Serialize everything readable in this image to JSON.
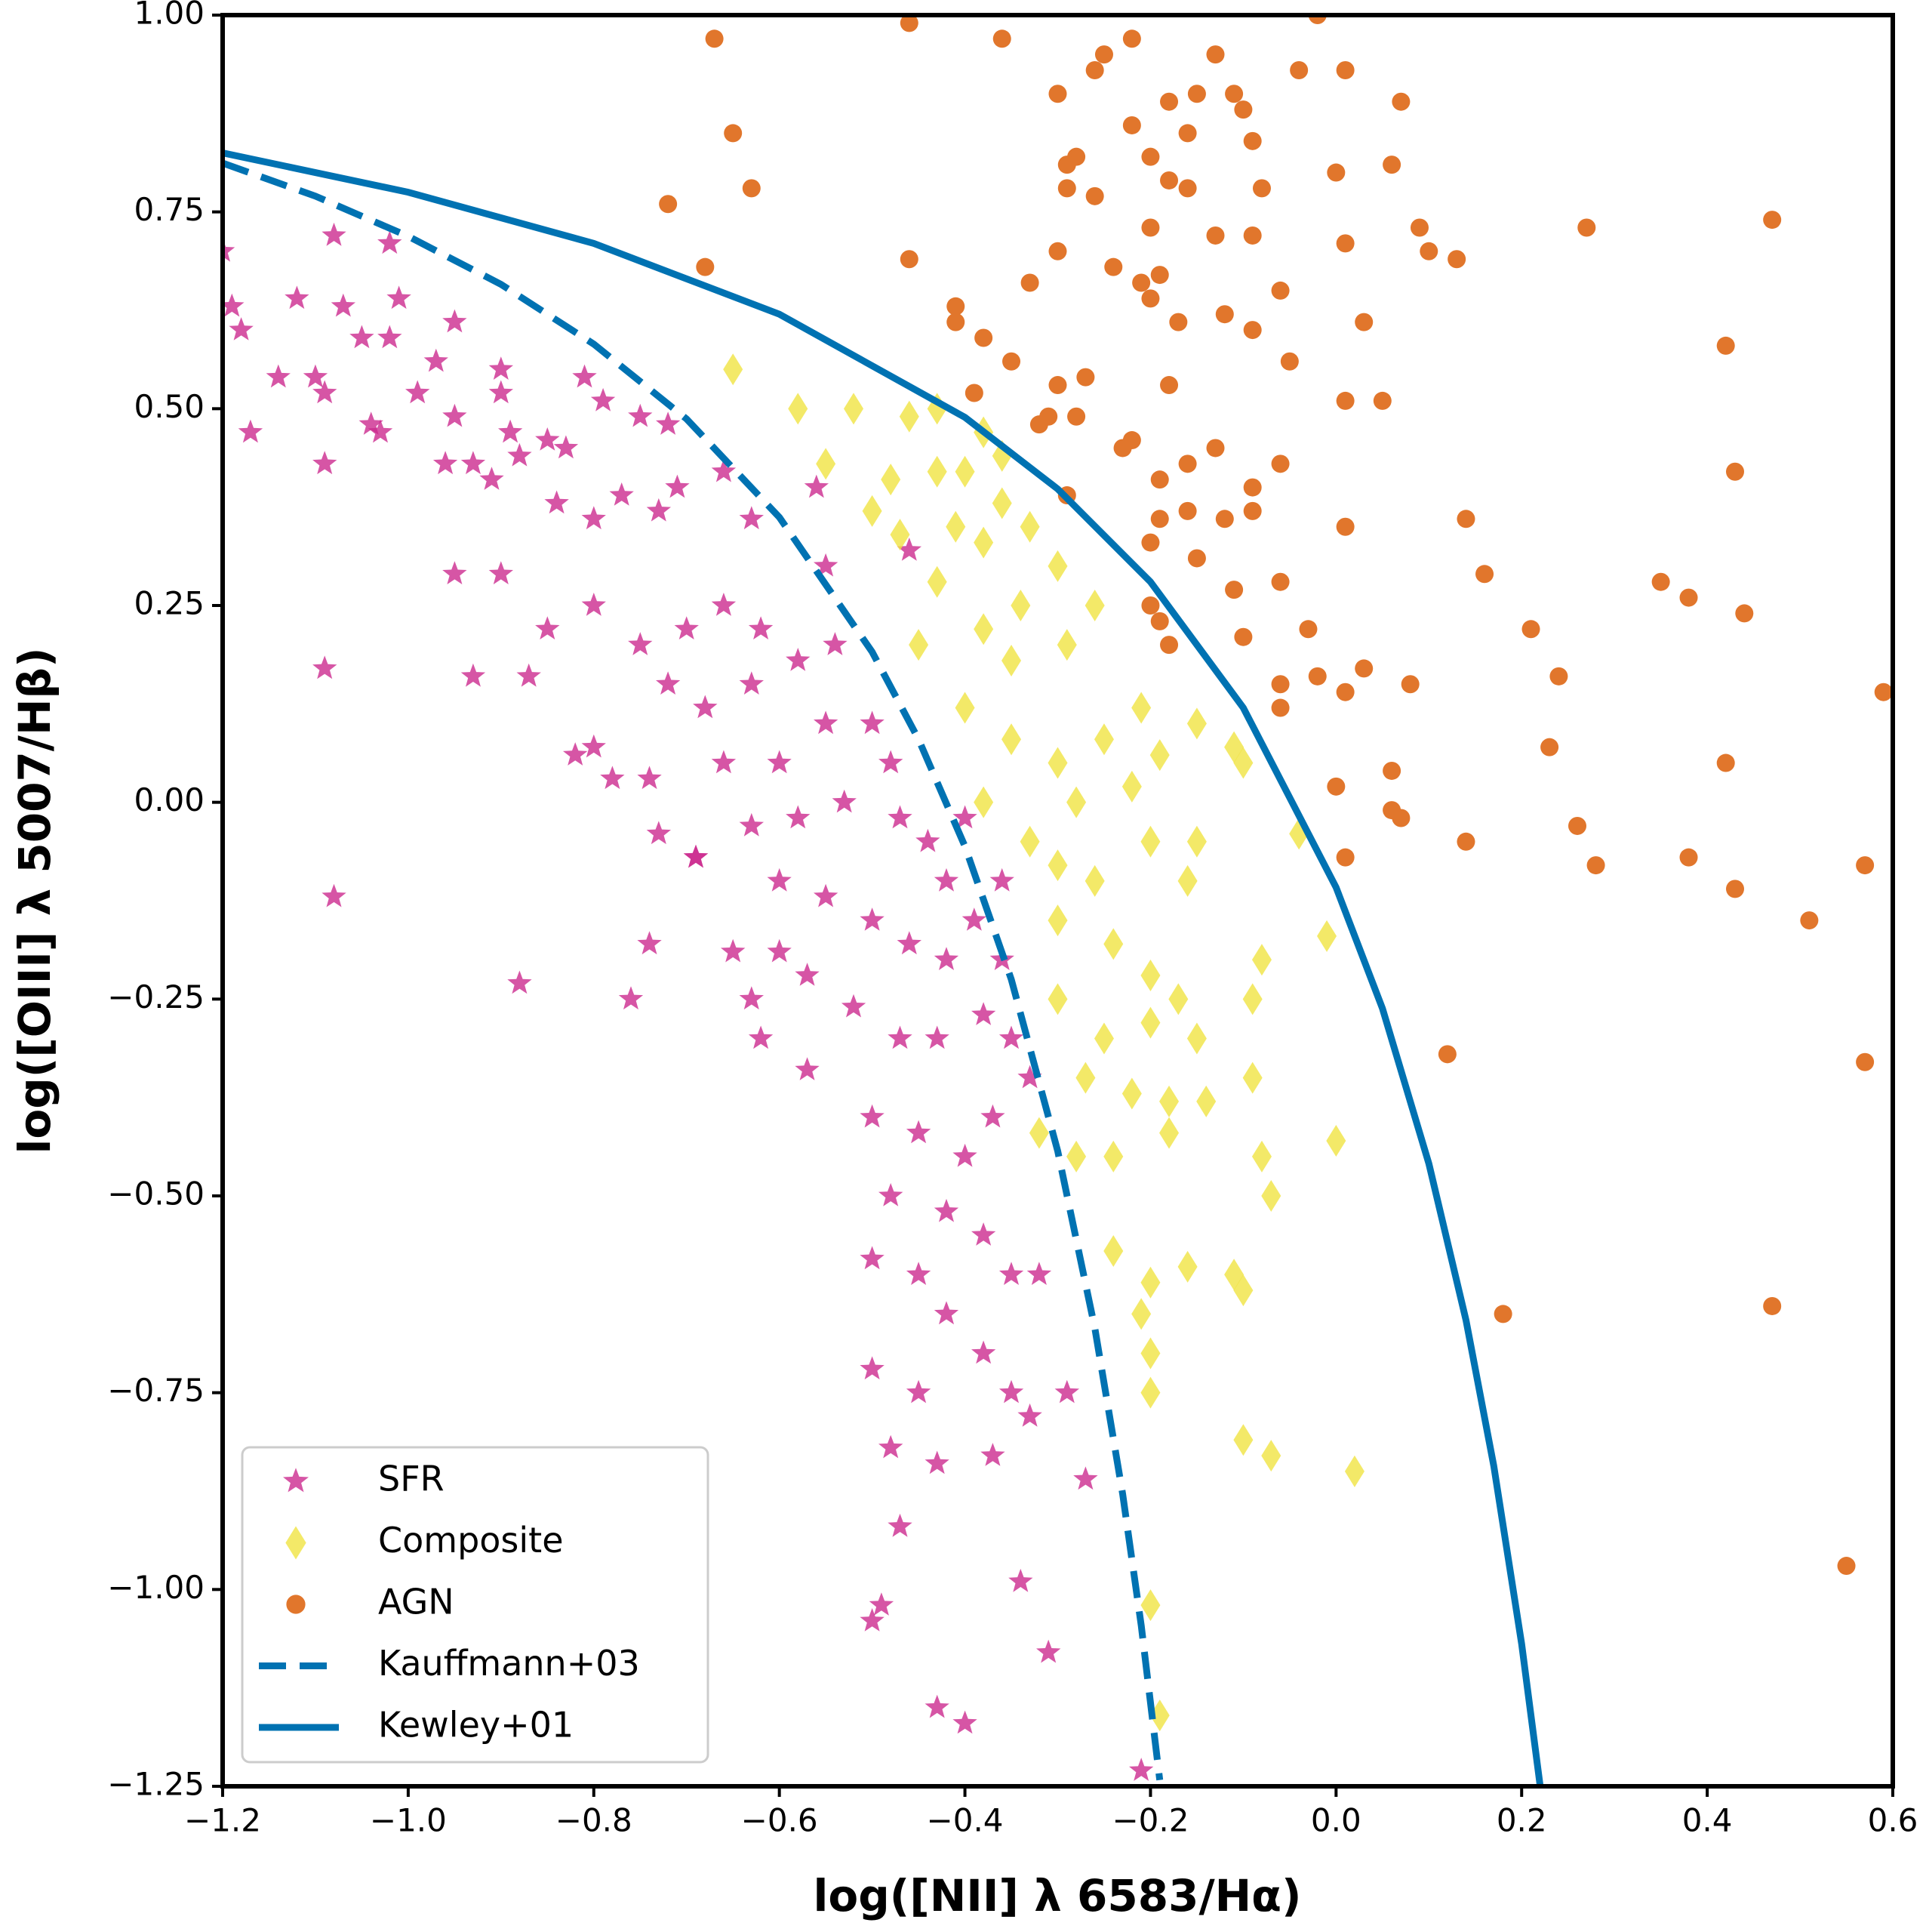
{
  "chart_data": {
    "type": "scatter",
    "xlabel": "log([NII] λ 6583/Hα)",
    "ylabel": "log([OIII] λ 5007/Hβ)",
    "xlim": [
      -1.2,
      0.6
    ],
    "ylim": [
      -1.25,
      1.0
    ],
    "xticks": [
      {
        "value": -1.2,
        "label": "−1.2"
      },
      {
        "value": -1.0,
        "label": "−1.0"
      },
      {
        "value": -0.8,
        "label": "−0.8"
      },
      {
        "value": -0.6,
        "label": "−0.6"
      },
      {
        "value": -0.4,
        "label": "−0.4"
      },
      {
        "value": -0.2,
        "label": "−0.2"
      },
      {
        "value": 0,
        "label": "0.0"
      },
      {
        "value": 0.2,
        "label": "0.2"
      },
      {
        "value": 0.4,
        "label": "0.4"
      },
      {
        "value": 0.6,
        "label": "0.6"
      }
    ],
    "yticks": [
      {
        "value": -1.25,
        "label": "−1.25"
      },
      {
        "value": -1.0,
        "label": "−1.00"
      },
      {
        "value": -0.75,
        "label": "−0.75"
      },
      {
        "value": -0.5,
        "label": "−0.50"
      },
      {
        "value": -0.25,
        "label": "−0.25"
      },
      {
        "value": 0,
        "label": "0.00"
      },
      {
        "value": 0.25,
        "label": "0.25"
      },
      {
        "value": 0.5,
        "label": "0.50"
      },
      {
        "value": 0.75,
        "label": "0.75"
      },
      {
        "value": 1.0,
        "label": "1.00"
      }
    ],
    "legend": "lower left",
    "series": [
      {
        "name": "SFR",
        "type": "scatter",
        "marker": "star",
        "color": "#cc2a8e",
        "x": [
          -1.2,
          -1.19,
          -1.18,
          -1.17,
          -1.12,
          -1.07,
          -1.05,
          -1.02,
          -1.08,
          -1.02,
          -1.01,
          -1.14,
          -1.1,
          -1.09,
          -1.04,
          -1.03,
          -0.99,
          -0.97,
          -0.95,
          -0.95,
          -0.96,
          -1.09,
          -0.93,
          -0.91,
          -0.9,
          -0.9,
          -0.89,
          -0.88,
          -0.85,
          -0.83,
          -0.81,
          -0.79,
          -0.75,
          -0.84,
          -0.8,
          -0.77,
          -0.73,
          -0.71,
          -0.95,
          -0.9,
          -0.8,
          -0.85,
          -0.75,
          -0.7,
          -0.66,
          -0.62,
          -0.72,
          -0.68,
          -0.63,
          -0.58,
          -0.54,
          -0.82,
          -0.78,
          -0.74,
          -0.66,
          -0.6,
          -0.55,
          -0.5,
          -0.48,
          -0.73,
          -0.69,
          -0.63,
          -0.58,
          -0.53,
          -0.47,
          -0.44,
          -0.42,
          -0.6,
          -0.55,
          -0.5,
          -0.46,
          -0.42,
          -0.39,
          -0.65,
          -0.63,
          -0.57,
          -0.52,
          -0.47,
          -0.43,
          -0.38,
          -0.35,
          -0.62,
          -0.57,
          -0.5,
          -0.45,
          -0.4,
          -0.37,
          -0.33,
          -0.48,
          -0.42,
          -0.38,
          -0.35,
          -0.32,
          -0.45,
          -0.5,
          -0.42,
          -0.38,
          -0.35,
          -0.45,
          -0.5,
          -0.48,
          -0.43,
          -0.37,
          -0.33,
          -0.29,
          -0.27,
          -0.47,
          -0.34,
          -0.5,
          -0.49,
          -0.31,
          -0.43,
          -0.4,
          -0.21,
          -1.09,
          -1.08,
          -0.88,
          -0.76,
          -0.74,
          -0.69,
          -0.6,
          -0.93,
          -0.87,
          -0.8,
          -0.46,
          -0.55,
          -0.63,
          -0.56,
          -0.66,
          -0.72,
          -0.4,
          -0.36,
          -0.36
        ],
        "values": [
          0.7,
          0.63,
          0.6,
          0.47,
          0.64,
          0.63,
          0.59,
          0.59,
          0.72,
          0.71,
          0.64,
          0.54,
          0.54,
          0.52,
          0.48,
          0.47,
          0.52,
          0.56,
          0.61,
          0.49,
          0.43,
          0.43,
          0.43,
          0.41,
          0.52,
          0.55,
          0.47,
          0.44,
          0.46,
          0.45,
          0.54,
          0.51,
          0.49,
          0.38,
          0.36,
          0.39,
          0.37,
          0.4,
          0.29,
          0.29,
          0.25,
          0.22,
          0.2,
          0.22,
          0.25,
          0.22,
          0.15,
          0.12,
          0.15,
          0.18,
          0.2,
          0.06,
          0.03,
          0.03,
          0.05,
          0.05,
          0.1,
          0.1,
          0.05,
          -0.04,
          -0.07,
          -0.03,
          -0.02,
          0,
          -0.02,
          -0.05,
          -0.1,
          -0.1,
          -0.12,
          -0.15,
          -0.18,
          -0.2,
          -0.15,
          -0.19,
          -0.25,
          -0.22,
          -0.26,
          -0.3,
          -0.3,
          -0.27,
          -0.3,
          -0.3,
          -0.34,
          -0.4,
          -0.42,
          -0.45,
          -0.4,
          -0.35,
          -0.5,
          -0.52,
          -0.55,
          -0.6,
          -0.6,
          -0.6,
          -0.58,
          -0.65,
          -0.7,
          -0.75,
          -0.75,
          -0.72,
          -0.82,
          -0.84,
          -0.83,
          -0.78,
          -0.75,
          -0.86,
          -0.92,
          -0.99,
          -1.04,
          -1.02,
          -1.08,
          -1.15,
          -1.17,
          -1.23,
          0.17,
          -0.12,
          -0.23,
          -0.25,
          -0.18,
          -0.07,
          -0.19,
          0.16,
          0.16,
          0.07,
          0.32,
          0.3,
          0.36,
          0.4,
          0.42,
          0.48,
          -0.02,
          -0.1,
          -0.2
        ]
      },
      {
        "name": "Composite",
        "type": "scatter",
        "marker": "diamond",
        "color": "#f0e442",
        "x": [
          -0.65,
          -0.58,
          -0.52,
          -0.46,
          -0.43,
          -0.38,
          -0.36,
          -0.55,
          -0.48,
          -0.43,
          -0.4,
          -0.36,
          -0.5,
          -0.47,
          -0.41,
          -0.38,
          -0.33,
          -0.3,
          -0.34,
          -0.38,
          -0.43,
          -0.45,
          -0.35,
          -0.29,
          -0.26,
          -0.4,
          -0.35,
          -0.3,
          -0.25,
          -0.21,
          -0.38,
          -0.33,
          -0.28,
          -0.22,
          -0.19,
          -0.15,
          -0.11,
          -0.1,
          -0.3,
          -0.26,
          -0.2,
          -0.15,
          -0.16,
          -0.3,
          -0.24,
          -0.2,
          -0.3,
          -0.25,
          -0.2,
          -0.17,
          -0.15,
          -0.27,
          -0.22,
          -0.18,
          -0.14,
          -0.08,
          -0.09,
          -0.09,
          -0.24,
          -0.18,
          -0.08,
          -0.07,
          -0.04,
          -0.01,
          0,
          -0.24,
          -0.21,
          -0.2,
          -0.16,
          -0.1,
          -0.11,
          -0.2,
          -0.2,
          -0.1,
          -0.07,
          0.02,
          -0.2,
          -0.19,
          -0.28,
          -0.32
        ],
        "values": [
          0.55,
          0.5,
          0.5,
          0.49,
          0.5,
          0.47,
          0.44,
          0.43,
          0.41,
          0.42,
          0.42,
          0.38,
          0.37,
          0.34,
          0.35,
          0.33,
          0.35,
          0.3,
          0.25,
          0.22,
          0.28,
          0.2,
          0.18,
          0.2,
          0.25,
          0.12,
          0.08,
          0.05,
          0.08,
          0.12,
          0,
          -0.05,
          0,
          0.02,
          0.06,
          0.1,
          0.07,
          0.05,
          -0.08,
          -0.1,
          -0.05,
          -0.05,
          -0.1,
          -0.15,
          -0.18,
          -0.22,
          -0.25,
          -0.3,
          -0.28,
          -0.25,
          -0.3,
          -0.35,
          -0.37,
          -0.38,
          -0.38,
          -0.2,
          -0.35,
          -0.25,
          -0.45,
          -0.42,
          -0.45,
          -0.5,
          -0.04,
          -0.17,
          -0.43,
          -0.57,
          -0.65,
          -0.61,
          -0.59,
          -0.62,
          -0.6,
          -0.7,
          -0.75,
          -0.81,
          -0.83,
          -0.85,
          -1.02,
          -1.16,
          -0.45,
          -0.42
        ]
      },
      {
        "name": "AGN",
        "type": "scatter",
        "marker": "circle",
        "color": "#e1762c",
        "x": [
          -0.46,
          -0.67,
          -0.36,
          -0.22,
          -0.25,
          -0.02,
          -0.26,
          -0.13,
          -0.04,
          0.01,
          -0.3,
          -0.18,
          -0.15,
          -0.11,
          -0.1,
          0.07,
          -0.65,
          -0.22,
          -0.2,
          -0.16,
          -0.09,
          -0.28,
          -0.29,
          0,
          0.06,
          -0.63,
          -0.29,
          -0.26,
          -0.18,
          -0.16,
          -0.08,
          -0.72,
          -0.2,
          -0.13,
          -0.09,
          0.01,
          0.09,
          0.27,
          0.47,
          -0.46,
          -0.68,
          -0.3,
          -0.24,
          -0.21,
          -0.19,
          0.1,
          0.13,
          -0.41,
          -0.33,
          -0.2,
          -0.17,
          -0.12,
          -0.09,
          -0.06,
          -0.38,
          -0.41,
          0.03,
          -0.35,
          -0.05,
          0.42,
          -0.39,
          -0.3,
          -0.27,
          -0.18,
          0.01,
          0.05,
          -0.32,
          -0.31,
          -0.28,
          -0.22,
          -0.19,
          -0.23,
          -0.16,
          -0.13,
          -0.06,
          -0.09,
          0.43,
          -0.29,
          -0.19,
          -0.16,
          -0.12,
          -0.09,
          -0.2,
          0.01,
          0.14,
          -0.2,
          -0.19,
          -0.15,
          -0.11,
          -0.06,
          0.16,
          0.35,
          0.38,
          0.44,
          -0.1,
          -0.18,
          -0.03,
          0.21,
          -0.06,
          -0.06,
          -0.02,
          0.03,
          0.08,
          0.01,
          0.24,
          0.59,
          0.23,
          0.06,
          0.42,
          0,
          0.06,
          0.07,
          0.26,
          0.01,
          0.14,
          0.28,
          0.38,
          0.57,
          0.43,
          0.51,
          0.12,
          0.57,
          0.18,
          0.47,
          0.55
        ],
        "values": [
          0.99,
          0.97,
          0.97,
          0.97,
          0.95,
          1.0,
          0.93,
          0.95,
          0.93,
          0.93,
          0.9,
          0.89,
          0.9,
          0.9,
          0.88,
          0.89,
          0.85,
          0.86,
          0.82,
          0.85,
          0.84,
          0.82,
          0.81,
          0.8,
          0.81,
          0.78,
          0.78,
          0.77,
          0.79,
          0.78,
          0.78,
          0.76,
          0.73,
          0.72,
          0.72,
          0.71,
          0.73,
          0.73,
          0.74,
          0.69,
          0.68,
          0.7,
          0.68,
          0.66,
          0.67,
          0.7,
          0.69,
          0.63,
          0.66,
          0.64,
          0.61,
          0.62,
          0.6,
          0.65,
          0.59,
          0.61,
          0.61,
          0.56,
          0.56,
          0.58,
          0.52,
          0.53,
          0.54,
          0.53,
          0.51,
          0.51,
          0.48,
          0.49,
          0.49,
          0.46,
          0.41,
          0.45,
          0.43,
          0.45,
          0.43,
          0.4,
          0.42,
          0.39,
          0.36,
          0.37,
          0.36,
          0.37,
          0.33,
          0.35,
          0.36,
          0.25,
          0.23,
          0.31,
          0.27,
          0.28,
          0.29,
          0.28,
          0.26,
          0.24,
          0.21,
          0.2,
          0.22,
          0.22,
          0.15,
          0.12,
          0.16,
          0.17,
          0.15,
          0.14,
          0.16,
          0.14,
          0.07,
          0.04,
          0.05,
          0.02,
          -0.01,
          -0.02,
          -0.03,
          -0.07,
          -0.05,
          -0.08,
          -0.07,
          -0.08,
          -0.11,
          -0.15,
          -0.32,
          -0.33,
          -0.65,
          -0.64,
          -0.97
        ]
      },
      {
        "name": "Kauffmann+03",
        "type": "line",
        "linestyle": "dashed",
        "color": "#0072b2",
        "x": [
          -1.2,
          -1.1,
          -1.0,
          -0.9,
          -0.8,
          -0.7,
          -0.6,
          -0.5,
          -0.45,
          -0.4,
          -0.35,
          -0.3,
          -0.26,
          -0.23,
          -0.21,
          -0.19
        ],
        "values": [
          0.812,
          0.77,
          0.719,
          0.658,
          0.582,
          0.487,
          0.362,
          0.191,
          0.08,
          -0.056,
          -0.225,
          -0.443,
          -0.668,
          -0.879,
          -1.046,
          -1.242
        ]
      },
      {
        "name": "Kewley+01",
        "type": "line",
        "linestyle": "solid",
        "color": "#0072b2",
        "x": [
          -1.2,
          -1.0,
          -0.8,
          -0.6,
          -0.4,
          -0.3,
          -0.2,
          -0.1,
          0,
          0.05,
          0.1,
          0.14,
          0.17,
          0.2,
          0.22
        ],
        "values": [
          0.825,
          0.775,
          0.71,
          0.62,
          0.489,
          0.398,
          0.28,
          0.12,
          -0.108,
          -0.262,
          -0.459,
          -0.658,
          -0.843,
          -1.069,
          -1.25
        ]
      }
    ]
  }
}
